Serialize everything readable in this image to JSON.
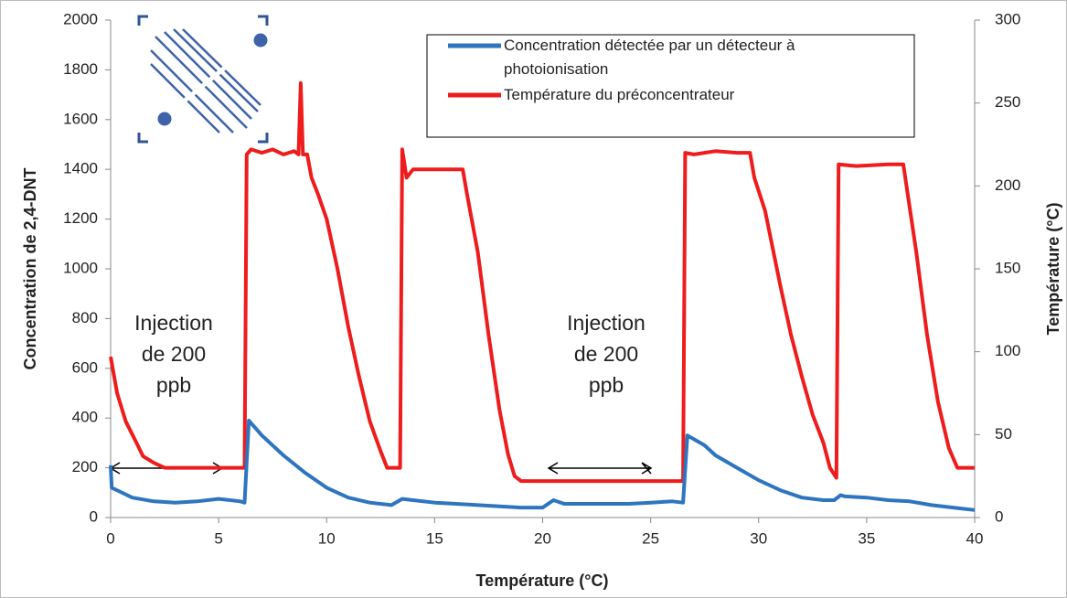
{
  "chart_data": {
    "type": "line",
    "xlabel": "Température (°C)",
    "ylabel": "Concentration de 2,4-DNT",
    "y2label": "Température (°C)",
    "xlim": [
      0,
      40
    ],
    "xticks": [
      0,
      5,
      10,
      15,
      20,
      25,
      30,
      35,
      40
    ],
    "ylim": [
      0,
      2000
    ],
    "yticks": [
      0,
      200,
      400,
      600,
      800,
      1000,
      1200,
      1400,
      1600,
      1800,
      2000
    ],
    "y2lim": [
      0,
      300
    ],
    "y2ticks": [
      0,
      50,
      100,
      150,
      200,
      250,
      300
    ],
    "annotations": [
      "Injection de 200 ppb",
      "Injection de 200 ppb"
    ],
    "series": [
      {
        "name": "Concentration détectée par un détecteur à photoionisation",
        "color": "#2e75c0",
        "x": [
          0,
          0.05,
          1,
          2,
          3,
          4,
          5,
          6,
          6.2,
          6.4,
          7,
          8,
          9,
          10,
          11,
          12,
          13,
          13.5,
          14,
          15,
          16,
          17,
          18,
          19,
          20,
          20.5,
          21,
          22,
          23,
          24,
          25,
          26,
          26.5,
          26.7,
          27.5,
          28,
          29,
          30,
          31,
          32,
          33,
          33.5,
          33.8,
          34,
          35,
          36,
          37,
          38,
          39,
          40
        ],
        "values": [
          210,
          120,
          80,
          65,
          60,
          65,
          75,
          65,
          60,
          390,
          330,
          250,
          180,
          120,
          80,
          60,
          50,
          75,
          70,
          60,
          55,
          50,
          45,
          40,
          40,
          70,
          55,
          55,
          55,
          55,
          60,
          65,
          60,
          330,
          290,
          250,
          200,
          150,
          110,
          80,
          70,
          70,
          90,
          85,
          80,
          70,
          65,
          50,
          40,
          30
        ]
      },
      {
        "name": "Température du préconcentrateur",
        "color": "#ee1c1c",
        "axis": "y2",
        "x": [
          0,
          0.3,
          0.7,
          1.2,
          1.5,
          2,
          2.5,
          6.2,
          6.3,
          6.5,
          7,
          7.5,
          8,
          8.5,
          8.7,
          8.8,
          8.9,
          9.1,
          9.3,
          9.6,
          10,
          10.5,
          11,
          11.5,
          12,
          12.5,
          12.8,
          13.4,
          13.5,
          13.7,
          14,
          16.3,
          16.5,
          17,
          17.5,
          18,
          18.4,
          18.7,
          19,
          26.5,
          26.6,
          27,
          28,
          29,
          29.6,
          29.8,
          30.3,
          31,
          31.5,
          32,
          32.5,
          33,
          33.3,
          33.6,
          33.7,
          34.5,
          36,
          36.7,
          36.9,
          37.3,
          37.8,
          38.3,
          38.8,
          39.2,
          40
        ],
        "values": [
          97,
          75,
          58,
          45,
          37,
          33,
          30,
          30,
          219,
          222,
          220,
          222,
          219,
          221,
          219,
          262,
          219,
          219,
          205,
          195,
          180,
          150,
          115,
          85,
          58,
          40,
          30,
          30,
          222,
          205,
          210,
          210,
          195,
          160,
          110,
          65,
          38,
          25,
          22,
          22,
          220,
          219,
          221,
          220,
          220,
          205,
          185,
          140,
          110,
          85,
          62,
          45,
          30,
          24,
          213,
          212,
          213,
          213,
          195,
          160,
          110,
          70,
          42,
          30,
          30
        ]
      }
    ]
  }
}
